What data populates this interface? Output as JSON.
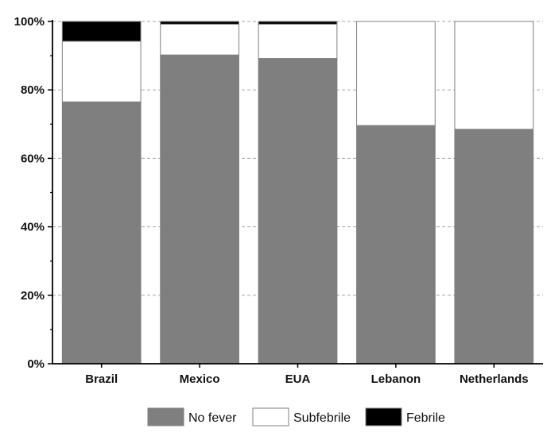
{
  "chart_data": {
    "type": "bar",
    "stacked": true,
    "categories": [
      "Brazil",
      "Mexico",
      "EUA",
      "Lebanon",
      "Netherlands"
    ],
    "series": [
      {
        "name": "No fever",
        "color": "#7f7f7f",
        "values": [
          76.5,
          90.2,
          89.2,
          69.6,
          68.5
        ]
      },
      {
        "name": "Subfebrile",
        "color": "#ffffff",
        "values": [
          17.7,
          9.0,
          10.0,
          30.4,
          31.5
        ]
      },
      {
        "name": "Febrile",
        "color": "#000000",
        "values": [
          5.8,
          0.8,
          0.8,
          0.0,
          0.0
        ]
      }
    ],
    "title": "",
    "xlabel": "",
    "ylabel": "",
    "ylim": [
      0,
      100
    ],
    "yticks": [
      "0%",
      "20%",
      "40%",
      "60%",
      "80%",
      "100%"
    ],
    "grid": "horizontal dashed",
    "legend": "bottom"
  }
}
